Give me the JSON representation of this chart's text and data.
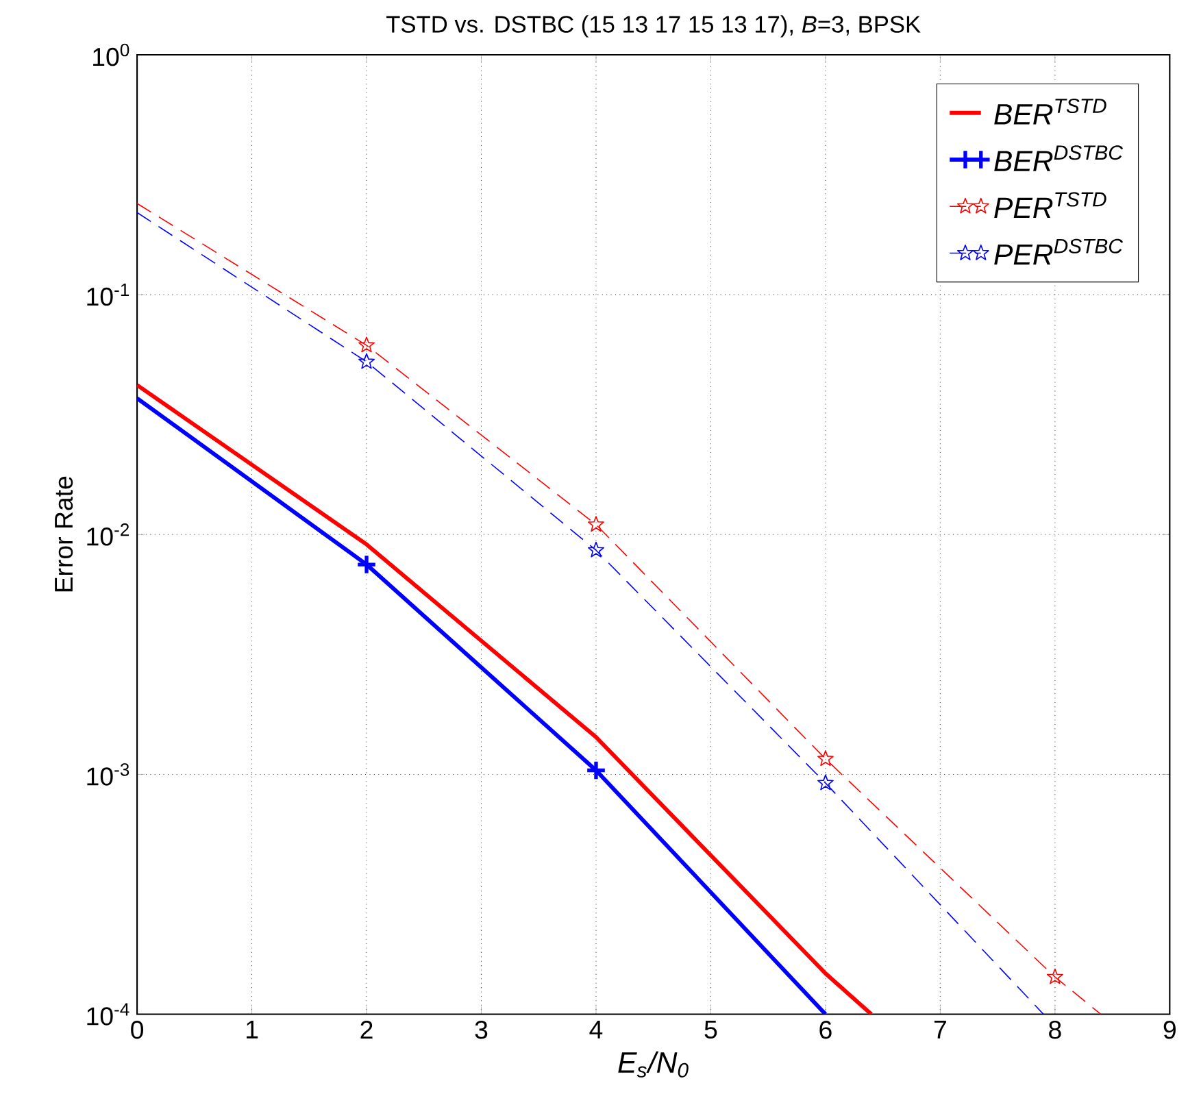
{
  "chart_data": {
    "type": "line",
    "title": "TSTD vs. DSTBC (15 13 17 15 13 17), *B*=3, BPSK",
    "xlabel": "E$_{s}$/N$_{0}$",
    "ylabel": "Error Rate",
    "log": "y",
    "grid": true,
    "legend": "top right",
    "xlim": [
      0,
      9
    ],
    "xticks": [
      0,
      1,
      2,
      3,
      4,
      5,
      6,
      7,
      8,
      9
    ],
    "ylim": [
      0.0001,
      1
    ],
    "yticks": [
      {
        "value": 0.0001,
        "label": "10$^{-4}$"
      },
      {
        "value": 0.001,
        "label": "10$^{-3}$"
      },
      {
        "value": 0.01,
        "label": "10$^{-2}$"
      },
      {
        "value": 0.1,
        "label": "10$^{-1}$"
      },
      {
        "value": 1,
        "label": "10$^{0}$"
      }
    ],
    "series": [
      {
        "name": "BER$^{TSTD}$",
        "color": "#ff0000",
        "line_style": "solid",
        "marker": "none",
        "x": [
          0,
          2,
          4,
          6,
          6.4
        ],
        "values": [
          0.042,
          0.0091,
          0.00143,
          0.000148,
          0.0001
        ]
      },
      {
        "name": "BER$^{DSTBC}$",
        "color": "#0000ff",
        "line_style": "solid",
        "marker": "cross",
        "x": [
          0,
          2,
          4,
          6
        ],
        "values": [
          0.037,
          0.0075,
          0.00104,
          0.0001
        ]
      },
      {
        "name": "PER$^{TSTD}$",
        "color": "#ff0000",
        "line_style": "dashed",
        "marker": "star",
        "x": [
          0,
          2,
          4,
          6,
          8,
          8.4
        ],
        "values": [
          0.24,
          0.0615,
          0.011,
          0.00116,
          0.000143,
          0.0001
        ]
      },
      {
        "name": "PER$^{DSTBC}$",
        "color": "#0000ff",
        "line_style": "dashed",
        "marker": "star",
        "x": [
          0,
          2,
          4,
          6,
          7.9
        ],
        "values": [
          0.22,
          0.0525,
          0.0086,
          0.00092,
          0.0001
        ]
      }
    ]
  }
}
